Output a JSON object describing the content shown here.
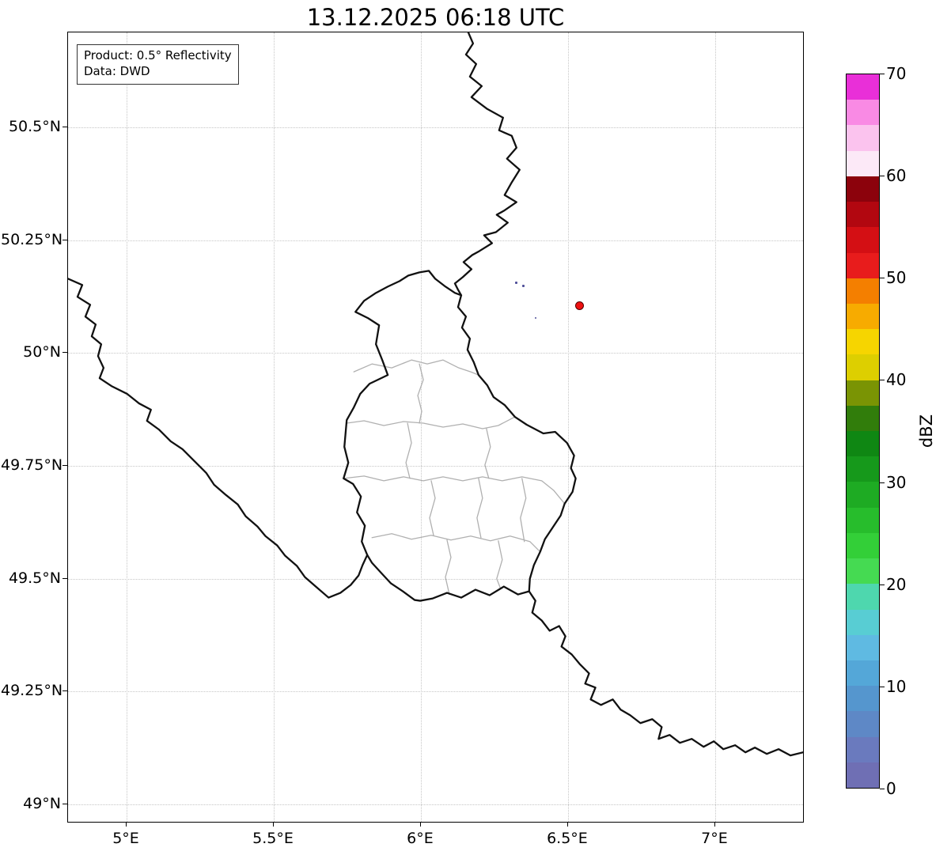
{
  "title": "13.12.2025 06:18 UTC",
  "info_box": {
    "line1": "Product: 0.5° Reflectivity",
    "line2": "Data: DWD"
  },
  "axes": {
    "x_ticks": [
      {
        "label": "5°E",
        "value": 5.0
      },
      {
        "label": "5.5°E",
        "value": 5.5
      },
      {
        "label": "6°E",
        "value": 6.0
      },
      {
        "label": "6.5°E",
        "value": 6.5
      },
      {
        "label": "7°E",
        "value": 7.0
      }
    ],
    "y_ticks": [
      {
        "label": "50.5°N",
        "value": 50.5
      },
      {
        "label": "50.25°N",
        "value": 50.25
      },
      {
        "label": "50°N",
        "value": 50.0
      },
      {
        "label": "49.75°N",
        "value": 49.75
      },
      {
        "label": "49.5°N",
        "value": 49.5
      },
      {
        "label": "49.25°N",
        "value": 49.25
      },
      {
        "label": "49°N",
        "value": 49.0
      }
    ],
    "x_range": [
      4.801,
      7.304
    ],
    "y_range": [
      48.958,
      50.71
    ],
    "grid": "dotted"
  },
  "colorbar": {
    "label": "dBZ",
    "min": 0,
    "max": 70,
    "step": 2.5,
    "ticks": [
      {
        "label": "0",
        "value": 0
      },
      {
        "label": "10",
        "value": 10
      },
      {
        "label": "20",
        "value": 20
      },
      {
        "label": "30",
        "value": 30
      },
      {
        "label": "40",
        "value": 40
      },
      {
        "label": "50",
        "value": 50
      },
      {
        "label": "60",
        "value": 60
      },
      {
        "label": "70",
        "value": 70
      }
    ],
    "colors_bottom_to_top": [
      "#6f6fb4",
      "#6a7abe",
      "#5e88c6",
      "#5596ce",
      "#54a7d8",
      "#5fbae2",
      "#58cdd3",
      "#4ed7ae",
      "#45da52",
      "#33cf38",
      "#27bd2c",
      "#1eab23",
      "#16991b",
      "#0f8713",
      "#317d0b",
      "#7a9404",
      "#ddcf00",
      "#f6d500",
      "#f7ab00",
      "#f47f00",
      "#e81c1c",
      "#d40f14",
      "#b20710",
      "#8c020c",
      "#fce9f7",
      "#fbc3ee",
      "#f98ae4",
      "#e92fd8"
    ]
  },
  "radar_marker": {
    "name": "radar-site",
    "lon": 6.54,
    "lat": 50.105,
    "fill": "#ee1111",
    "edge": "#550000"
  },
  "echoes": [
    {
      "lon": 6.325,
      "lat": 50.155,
      "color": "#50509a",
      "size": 3
    },
    {
      "lon": 6.349,
      "lat": 50.148,
      "color": "#50509a",
      "size": 3
    },
    {
      "lon": 6.39,
      "lat": 50.078,
      "color": "#50509a",
      "size": 2
    }
  ],
  "map_style": {
    "country_border_color": "#111111",
    "admin_border_color": "#b0b0b0",
    "background": "#ffffff"
  }
}
